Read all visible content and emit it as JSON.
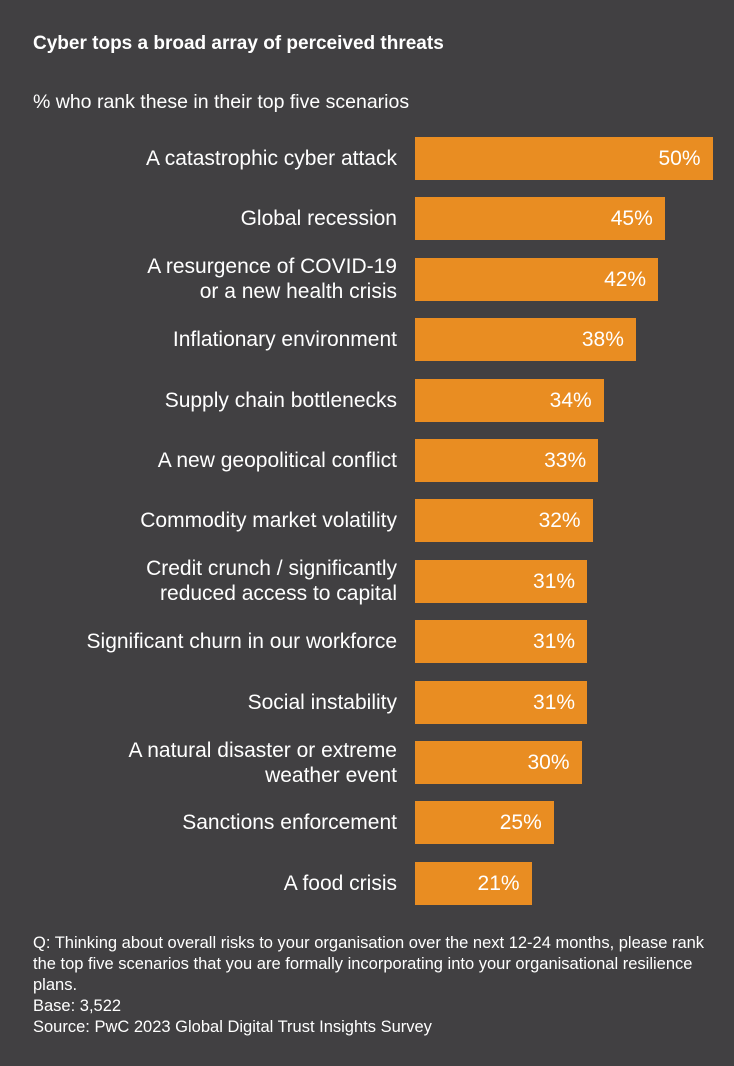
{
  "chart_data": {
    "type": "bar",
    "orientation": "horizontal",
    "title": "Cyber tops a broad array of perceived threats",
    "subtitle": "% who rank these in their top five scenarios",
    "categories": [
      "A catastrophic cyber attack",
      "Global recession",
      "A resurgence of COVID-19\nor a new health crisis",
      "Inflationary environment",
      "Supply chain bottlenecks",
      "A new geopolitical conflict",
      "Commodity market volatility",
      "Credit crunch / significantly\nreduced access to capital",
      "Significant churn in our workforce",
      "Social instability",
      "A natural disaster or extreme\nweather event",
      "Sanctions enforcement",
      "A food crisis"
    ],
    "values": [
      50,
      45,
      42,
      38,
      34,
      33,
      32,
      31,
      31,
      31,
      30,
      25,
      21
    ],
    "value_labels": [
      "50%",
      "45%",
      "42%",
      "38%",
      "34%",
      "33%",
      "32%",
      "31%",
      "31%",
      "31%",
      "30%",
      "25%",
      "21%"
    ],
    "xlabel": "",
    "ylabel": "",
    "grid": false,
    "bar_color": "#e98d22",
    "background": "#414042"
  },
  "footnote": {
    "question": "Q: Thinking about overall risks to your organisation over the next 12-24 months, please rank the top five scenarios that you are formally incorporating into your organisational resilience plans.",
    "base": "Base: 3,522",
    "source": "Source: PwC 2023 Global Digital Trust Insights Survey"
  }
}
